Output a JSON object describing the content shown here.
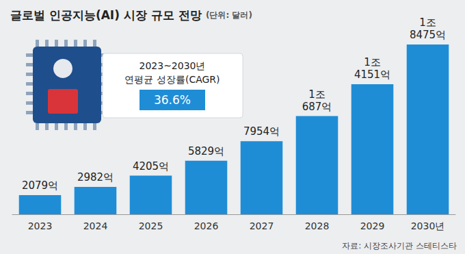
{
  "chart_data": {
    "type": "bar",
    "title": "글로벌 인공지능(AI) 시장 규모 전망",
    "subtitle": "(단위: 달러)",
    "categories": [
      "2023",
      "2024",
      "2025",
      "2026",
      "2027",
      "2028",
      "2029",
      "2030년"
    ],
    "values": [
      2079,
      2982,
      4205,
      5829,
      7954,
      10687,
      14151,
      18475
    ],
    "value_labels": [
      "2079억",
      "2982억",
      "4205억",
      "5829억",
      "7954억",
      "1조 687억",
      "1조 4151억",
      "1조 8475억"
    ],
    "color": "#1f8dd6",
    "ylim": [
      0,
      18475
    ],
    "grid": false,
    "data_labels": true,
    "tick_labels": "x",
    "annotations": [
      "2023~2030년 연평균 성장률(CAGR)",
      "36.6%"
    ],
    "source": "자료: 시장조사기관 스테티스타"
  }
}
